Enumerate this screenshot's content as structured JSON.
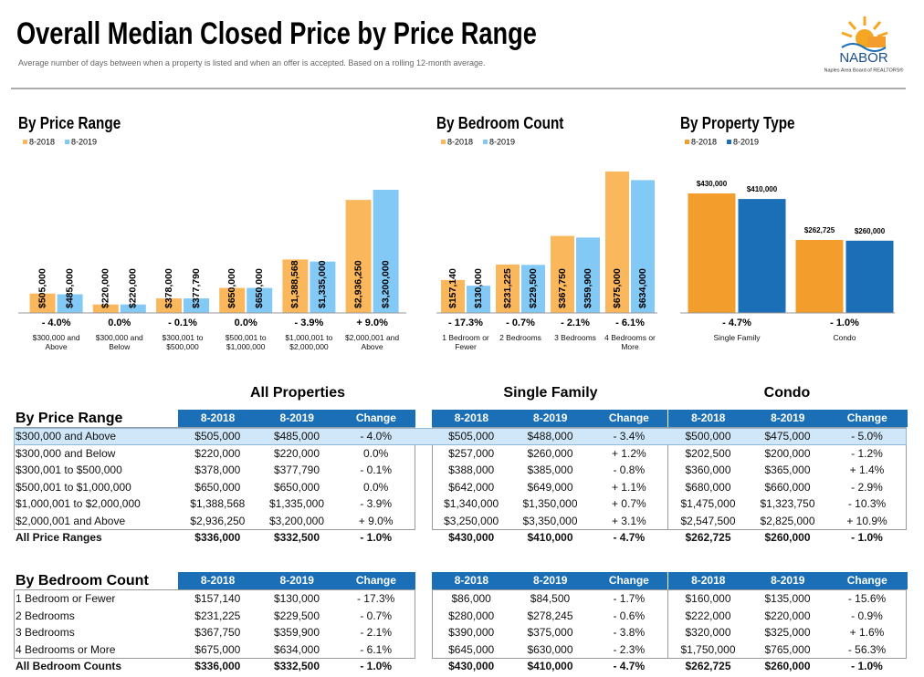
{
  "header": {
    "title": "Overall Median Closed Price by Price Range",
    "subtitle": "Average number of days between when a property is listed and when an offer is accepted.  Based on a rolling 12-month average.",
    "logo_name": "NABOR",
    "logo_tagline": "Naples Area Board of REALTORS®"
  },
  "chart_data": [
    {
      "type": "bar",
      "title": "By Price Range",
      "categories": [
        "$300,000 and Above",
        "$300,000 and Below",
        "$300,001 to $500,000",
        "$500,001 to $1,000,000",
        "$1,000,001 to $2,000,000",
        "$2,000,001 and Above"
      ],
      "series": [
        {
          "name": "8-2018",
          "color": "#fbb75b",
          "values": [
            505000,
            220000,
            378000,
            650000,
            1388568,
            2936250
          ],
          "value_labels": [
            "$505,000",
            "$220,000",
            "$378,000",
            "$650,000",
            "$1,388,568",
            "$2,936,250"
          ]
        },
        {
          "name": "8-2019",
          "color": "#83c9f6",
          "values": [
            485000,
            220000,
            377790,
            650000,
            1335000,
            3200000
          ],
          "value_labels": [
            "$485,000",
            "$220,000",
            "$377,790",
            "$650,000",
            "$1,335,000",
            "$3,200,000"
          ]
        }
      ],
      "changes": [
        "- 4.0%",
        "0.0%",
        "- 0.1%",
        "0.0%",
        "- 3.9%",
        "+ 9.0%"
      ]
    },
    {
      "type": "bar",
      "title": "By Bedroom Count",
      "categories": [
        "1 Bedroom or Fewer",
        "2 Bedrooms",
        "3 Bedrooms",
        "4 Bedrooms or More"
      ],
      "series": [
        {
          "name": "8-2018",
          "color": "#fbb75b",
          "values": [
            157140,
            231225,
            367750,
            675000
          ],
          "value_labels": [
            "$157,140",
            "$231,225",
            "$367,750",
            "$675,000"
          ]
        },
        {
          "name": "8-2019",
          "color": "#83c9f6",
          "values": [
            130000,
            229500,
            359900,
            634000
          ],
          "value_labels": [
            "$130,000",
            "$229,500",
            "$359,900",
            "$634,000"
          ]
        }
      ],
      "changes": [
        "- 17.3%",
        "- 0.7%",
        "- 2.1%",
        "- 6.1%"
      ]
    },
    {
      "type": "bar",
      "title": "By Property Type",
      "categories": [
        "Single Family",
        "Condo"
      ],
      "series": [
        {
          "name": "8-2018",
          "color": "#f39d2c",
          "values": [
            430000,
            262725
          ],
          "value_labels": [
            "$430,000",
            "$262,725"
          ]
        },
        {
          "name": "8-2019",
          "color": "#1b6fb6",
          "values": [
            410000,
            260000
          ],
          "value_labels": [
            "$410,000",
            "$260,000"
          ]
        }
      ],
      "changes": [
        "- 4.7%",
        "- 1.0%"
      ]
    }
  ],
  "group_titles": [
    "All Properties",
    "Single Family",
    "Condo"
  ],
  "column_headers": [
    "8-2018",
    "8-2019",
    "Change"
  ],
  "tables": [
    {
      "title": "By Price Range",
      "rows": [
        [
          "$300,000 and Above",
          "$505,000",
          "$485,000",
          "- 4.0%",
          "$505,000",
          "$488,000",
          "- 3.4%",
          "$500,000",
          "$475,000",
          "- 5.0%"
        ],
        [
          "$300,000 and Below",
          "$220,000",
          "$220,000",
          "0.0%",
          "$257,000",
          "$260,000",
          "+ 1.2%",
          "$202,500",
          "$200,000",
          "- 1.2%"
        ],
        [
          "$300,001 to $500,000",
          "$378,000",
          "$377,790",
          "- 0.1%",
          "$388,000",
          "$385,000",
          "- 0.8%",
          "$360,000",
          "$365,000",
          "+ 1.4%"
        ],
        [
          "$500,001 to $1,000,000",
          "$650,000",
          "$650,000",
          "0.0%",
          "$642,000",
          "$649,000",
          "+ 1.1%",
          "$680,000",
          "$660,000",
          "- 2.9%"
        ],
        [
          "$1,000,001 to $2,000,000",
          "$1,388,568",
          "$1,335,000",
          "- 3.9%",
          "$1,340,000",
          "$1,350,000",
          "+ 0.7%",
          "$1,475,000",
          "$1,323,750",
          "- 10.3%"
        ],
        [
          "$2,000,001 and Above",
          "$2,936,250",
          "$3,200,000",
          "+ 9.0%",
          "$3,250,000",
          "$3,350,000",
          "+ 3.1%",
          "$2,547,500",
          "$2,825,000",
          "+ 10.9%"
        ],
        [
          "All Price Ranges",
          "$336,000",
          "$332,500",
          "- 1.0%",
          "$430,000",
          "$410,000",
          "- 4.7%",
          "$262,725",
          "$260,000",
          "- 1.0%"
        ]
      ]
    },
    {
      "title": "By Bedroom Count",
      "rows": [
        [
          "1 Bedroom or Fewer",
          "$157,140",
          "$130,000",
          "- 17.3%",
          "$86,000",
          "$84,500",
          "- 1.7%",
          "$160,000",
          "$135,000",
          "- 15.6%"
        ],
        [
          "2 Bedrooms",
          "$231,225",
          "$229,500",
          "- 0.7%",
          "$280,000",
          "$278,245",
          "- 0.6%",
          "$222,000",
          "$220,000",
          "- 0.9%"
        ],
        [
          "3 Bedrooms",
          "$367,750",
          "$359,900",
          "- 2.1%",
          "$390,000",
          "$375,000",
          "- 3.8%",
          "$320,000",
          "$325,000",
          "+ 1.6%"
        ],
        [
          "4 Bedrooms or More",
          "$675,000",
          "$634,000",
          "- 6.1%",
          "$645,000",
          "$630,000",
          "- 2.3%",
          "$1,750,000",
          "$765,000",
          "- 56.3%"
        ],
        [
          "All Bedroom Counts",
          "$336,000",
          "$332,500",
          "- 1.0%",
          "$430,000",
          "$410,000",
          "- 4.7%",
          "$262,725",
          "$260,000",
          "- 1.0%"
        ]
      ]
    }
  ]
}
